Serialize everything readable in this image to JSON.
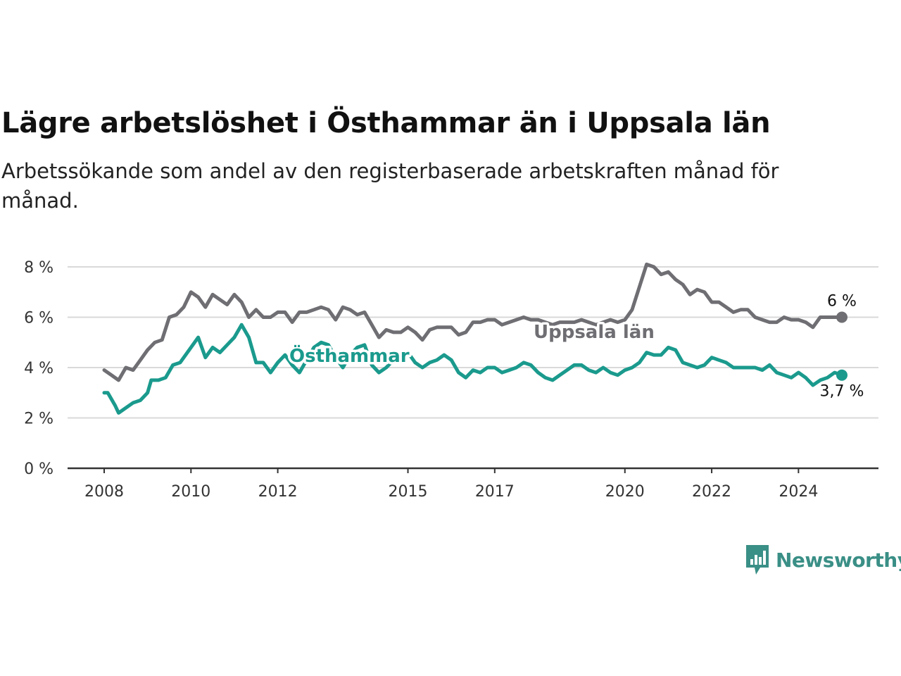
{
  "title": "Lägre arbetslöshet i Östhammar än i Uppsala län",
  "subtitle": "Arbetssökande som andel av den registerbaserade arbetskraften månad för månad.",
  "brand": {
    "name": "Newsworthy",
    "icon": "newsworthy-logo-icon",
    "color": "#3a8f86"
  },
  "chart_data": {
    "type": "line",
    "x_start": "2008-01",
    "x_end": "2025-01",
    "ylim": [
      0,
      8
    ],
    "grid": true,
    "y_ticks": [
      {
        "value": 0,
        "label": "0 %"
      },
      {
        "value": 2,
        "label": "2 %"
      },
      {
        "value": 4,
        "label": "4 %"
      },
      {
        "value": 6,
        "label": "6 %"
      },
      {
        "value": 8,
        "label": "8 %"
      }
    ],
    "x_ticks": [
      {
        "value": "2008-01",
        "label": "2008"
      },
      {
        "value": "2010-01",
        "label": "2010"
      },
      {
        "value": "2012-01",
        "label": "2012"
      },
      {
        "value": "2015-01",
        "label": "2015"
      },
      {
        "value": "2017-01",
        "label": "2017"
      },
      {
        "value": "2020-01",
        "label": "2020"
      },
      {
        "value": "2022-01",
        "label": "2022"
      },
      {
        "value": "2024-01",
        "label": "2024"
      }
    ],
    "series": [
      {
        "name": "Uppsala län",
        "color": "#6e6e73",
        "end_label": "6 %",
        "points": [
          [
            "2008-01",
            3.9
          ],
          [
            "2008-03",
            3.7
          ],
          [
            "2008-05",
            3.5
          ],
          [
            "2008-07",
            4.0
          ],
          [
            "2008-09",
            3.9
          ],
          [
            "2008-11",
            4.3
          ],
          [
            "2009-01",
            4.7
          ],
          [
            "2009-03",
            5.0
          ],
          [
            "2009-05",
            5.1
          ],
          [
            "2009-07",
            6.0
          ],
          [
            "2009-09",
            6.1
          ],
          [
            "2009-11",
            6.4
          ],
          [
            "2010-01",
            7.0
          ],
          [
            "2010-03",
            6.8
          ],
          [
            "2010-05",
            6.4
          ],
          [
            "2010-07",
            6.9
          ],
          [
            "2010-09",
            6.7
          ],
          [
            "2010-11",
            6.5
          ],
          [
            "2011-01",
            6.9
          ],
          [
            "2011-03",
            6.6
          ],
          [
            "2011-05",
            6.0
          ],
          [
            "2011-07",
            6.3
          ],
          [
            "2011-09",
            6.0
          ],
          [
            "2011-11",
            6.0
          ],
          [
            "2012-01",
            6.2
          ],
          [
            "2012-03",
            6.2
          ],
          [
            "2012-05",
            5.8
          ],
          [
            "2012-07",
            6.2
          ],
          [
            "2012-09",
            6.2
          ],
          [
            "2012-11",
            6.3
          ],
          [
            "2013-01",
            6.4
          ],
          [
            "2013-03",
            6.3
          ],
          [
            "2013-05",
            5.9
          ],
          [
            "2013-07",
            6.4
          ],
          [
            "2013-09",
            6.3
          ],
          [
            "2013-11",
            6.1
          ],
          [
            "2014-01",
            6.2
          ],
          [
            "2014-03",
            5.7
          ],
          [
            "2014-05",
            5.2
          ],
          [
            "2014-07",
            5.5
          ],
          [
            "2014-09",
            5.4
          ],
          [
            "2014-11",
            5.4
          ],
          [
            "2015-01",
            5.6
          ],
          [
            "2015-03",
            5.4
          ],
          [
            "2015-05",
            5.1
          ],
          [
            "2015-07",
            5.5
          ],
          [
            "2015-09",
            5.6
          ],
          [
            "2015-11",
            5.6
          ],
          [
            "2016-01",
            5.6
          ],
          [
            "2016-03",
            5.3
          ],
          [
            "2016-05",
            5.4
          ],
          [
            "2016-07",
            5.8
          ],
          [
            "2016-09",
            5.8
          ],
          [
            "2016-11",
            5.9
          ],
          [
            "2017-01",
            5.9
          ],
          [
            "2017-03",
            5.7
          ],
          [
            "2017-05",
            5.8
          ],
          [
            "2017-07",
            5.9
          ],
          [
            "2017-09",
            6.0
          ],
          [
            "2017-11",
            5.9
          ],
          [
            "2018-01",
            5.9
          ],
          [
            "2018-03",
            5.8
          ],
          [
            "2018-05",
            5.7
          ],
          [
            "2018-07",
            5.8
          ],
          [
            "2018-09",
            5.8
          ],
          [
            "2018-11",
            5.8
          ],
          [
            "2019-01",
            5.9
          ],
          [
            "2019-03",
            5.8
          ],
          [
            "2019-05",
            5.7
          ],
          [
            "2019-07",
            5.8
          ],
          [
            "2019-09",
            5.9
          ],
          [
            "2019-11",
            5.8
          ],
          [
            "2020-01",
            5.9
          ],
          [
            "2020-03",
            6.3
          ],
          [
            "2020-05",
            7.2
          ],
          [
            "2020-07",
            8.1
          ],
          [
            "2020-09",
            8.0
          ],
          [
            "2020-11",
            7.7
          ],
          [
            "2021-01",
            7.8
          ],
          [
            "2021-03",
            7.5
          ],
          [
            "2021-05",
            7.3
          ],
          [
            "2021-07",
            6.9
          ],
          [
            "2021-09",
            7.1
          ],
          [
            "2021-11",
            7.0
          ],
          [
            "2022-01",
            6.6
          ],
          [
            "2022-03",
            6.6
          ],
          [
            "2022-05",
            6.4
          ],
          [
            "2022-07",
            6.2
          ],
          [
            "2022-09",
            6.3
          ],
          [
            "2022-11",
            6.3
          ],
          [
            "2023-01",
            6.0
          ],
          [
            "2023-03",
            5.9
          ],
          [
            "2023-05",
            5.8
          ],
          [
            "2023-07",
            5.8
          ],
          [
            "2023-09",
            6.0
          ],
          [
            "2023-11",
            5.9
          ],
          [
            "2024-01",
            5.9
          ],
          [
            "2024-03",
            5.8
          ],
          [
            "2024-05",
            5.6
          ],
          [
            "2024-07",
            6.0
          ],
          [
            "2024-09",
            6.0
          ],
          [
            "2024-11",
            6.0
          ],
          [
            "2025-01",
            6.0
          ]
        ]
      },
      {
        "name": "Östhammar",
        "color": "#1a9a8d",
        "end_label": "3,7 %",
        "points": [
          [
            "2008-01",
            3.0
          ],
          [
            "2008-02",
            3.0
          ],
          [
            "2008-04",
            2.5
          ],
          [
            "2008-05",
            2.2
          ],
          [
            "2008-07",
            2.4
          ],
          [
            "2008-09",
            2.6
          ],
          [
            "2008-11",
            2.7
          ],
          [
            "2009-01",
            3.0
          ],
          [
            "2009-02",
            3.5
          ],
          [
            "2009-04",
            3.5
          ],
          [
            "2009-06",
            3.6
          ],
          [
            "2009-08",
            4.1
          ],
          [
            "2009-10",
            4.2
          ],
          [
            "2010-01",
            4.8
          ],
          [
            "2010-03",
            5.2
          ],
          [
            "2010-05",
            4.4
          ],
          [
            "2010-07",
            4.8
          ],
          [
            "2010-09",
            4.6
          ],
          [
            "2010-11",
            4.9
          ],
          [
            "2011-01",
            5.2
          ],
          [
            "2011-03",
            5.7
          ],
          [
            "2011-05",
            5.2
          ],
          [
            "2011-07",
            4.2
          ],
          [
            "2011-09",
            4.2
          ],
          [
            "2011-11",
            3.8
          ],
          [
            "2012-01",
            4.2
          ],
          [
            "2012-03",
            4.5
          ],
          [
            "2012-05",
            4.1
          ],
          [
            "2012-07",
            3.8
          ],
          [
            "2012-09",
            4.3
          ],
          [
            "2012-11",
            4.8
          ],
          [
            "2013-01",
            5.0
          ],
          [
            "2013-03",
            4.9
          ],
          [
            "2013-05",
            4.4
          ],
          [
            "2013-07",
            4.0
          ],
          [
            "2013-09",
            4.5
          ],
          [
            "2013-11",
            4.8
          ],
          [
            "2014-01",
            4.9
          ],
          [
            "2014-03",
            4.1
          ],
          [
            "2014-05",
            3.8
          ],
          [
            "2014-07",
            4.0
          ],
          [
            "2014-09",
            4.3
          ],
          [
            "2014-11",
            4.5
          ],
          [
            "2015-01",
            4.6
          ],
          [
            "2015-03",
            4.2
          ],
          [
            "2015-05",
            4.0
          ],
          [
            "2015-07",
            4.2
          ],
          [
            "2015-09",
            4.3
          ],
          [
            "2015-11",
            4.5
          ],
          [
            "2016-01",
            4.3
          ],
          [
            "2016-03",
            3.8
          ],
          [
            "2016-05",
            3.6
          ],
          [
            "2016-07",
            3.9
          ],
          [
            "2016-09",
            3.8
          ],
          [
            "2016-11",
            4.0
          ],
          [
            "2017-01",
            4.0
          ],
          [
            "2017-03",
            3.8
          ],
          [
            "2017-05",
            3.9
          ],
          [
            "2017-07",
            4.0
          ],
          [
            "2017-09",
            4.2
          ],
          [
            "2017-11",
            4.1
          ],
          [
            "2018-01",
            3.8
          ],
          [
            "2018-03",
            3.6
          ],
          [
            "2018-05",
            3.5
          ],
          [
            "2018-07",
            3.7
          ],
          [
            "2018-09",
            3.9
          ],
          [
            "2018-11",
            4.1
          ],
          [
            "2019-01",
            4.1
          ],
          [
            "2019-03",
            3.9
          ],
          [
            "2019-05",
            3.8
          ],
          [
            "2019-07",
            4.0
          ],
          [
            "2019-09",
            3.8
          ],
          [
            "2019-11",
            3.7
          ],
          [
            "2020-01",
            3.9
          ],
          [
            "2020-03",
            4.0
          ],
          [
            "2020-05",
            4.2
          ],
          [
            "2020-07",
            4.6
          ],
          [
            "2020-09",
            4.5
          ],
          [
            "2020-11",
            4.5
          ],
          [
            "2021-01",
            4.8
          ],
          [
            "2021-03",
            4.7
          ],
          [
            "2021-05",
            4.2
          ],
          [
            "2021-07",
            4.1
          ],
          [
            "2021-09",
            4.0
          ],
          [
            "2021-11",
            4.1
          ],
          [
            "2022-01",
            4.4
          ],
          [
            "2022-03",
            4.3
          ],
          [
            "2022-05",
            4.2
          ],
          [
            "2022-07",
            4.0
          ],
          [
            "2022-09",
            4.0
          ],
          [
            "2022-11",
            4.0
          ],
          [
            "2023-01",
            4.0
          ],
          [
            "2023-03",
            3.9
          ],
          [
            "2023-05",
            4.1
          ],
          [
            "2023-07",
            3.8
          ],
          [
            "2023-09",
            3.7
          ],
          [
            "2023-11",
            3.6
          ],
          [
            "2024-01",
            3.8
          ],
          [
            "2024-03",
            3.6
          ],
          [
            "2024-05",
            3.3
          ],
          [
            "2024-07",
            3.5
          ],
          [
            "2024-09",
            3.6
          ],
          [
            "2024-11",
            3.8
          ],
          [
            "2025-01",
            3.7
          ]
        ]
      }
    ]
  }
}
